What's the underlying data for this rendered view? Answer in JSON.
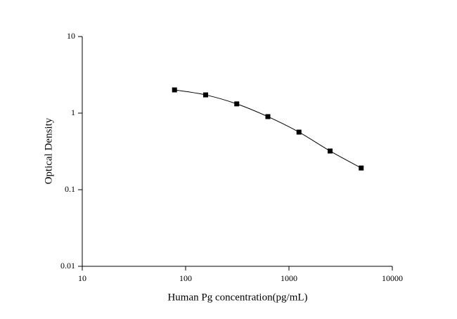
{
  "chart_data": {
    "type": "line",
    "x_label": "Human Pg concentration(pg/mL)",
    "y_label": "Optical Density",
    "x": [
      78.125,
      156.25,
      312.5,
      625,
      1250,
      2500,
      5000
    ],
    "series": [
      {
        "color": "#000000",
        "values": [
          2.01,
          1.73,
          1.32,
          0.9,
          0.565,
          0.32,
          0.192
        ]
      }
    ],
    "markers": true,
    "xscale": "log",
    "yscale": "log",
    "xlim": [
      10,
      10000
    ],
    "xticks": [
      10,
      100,
      1000,
      10000
    ],
    "ylim": [
      0.01,
      10
    ],
    "yticks": [
      0.01,
      0.1,
      1,
      10
    ]
  }
}
